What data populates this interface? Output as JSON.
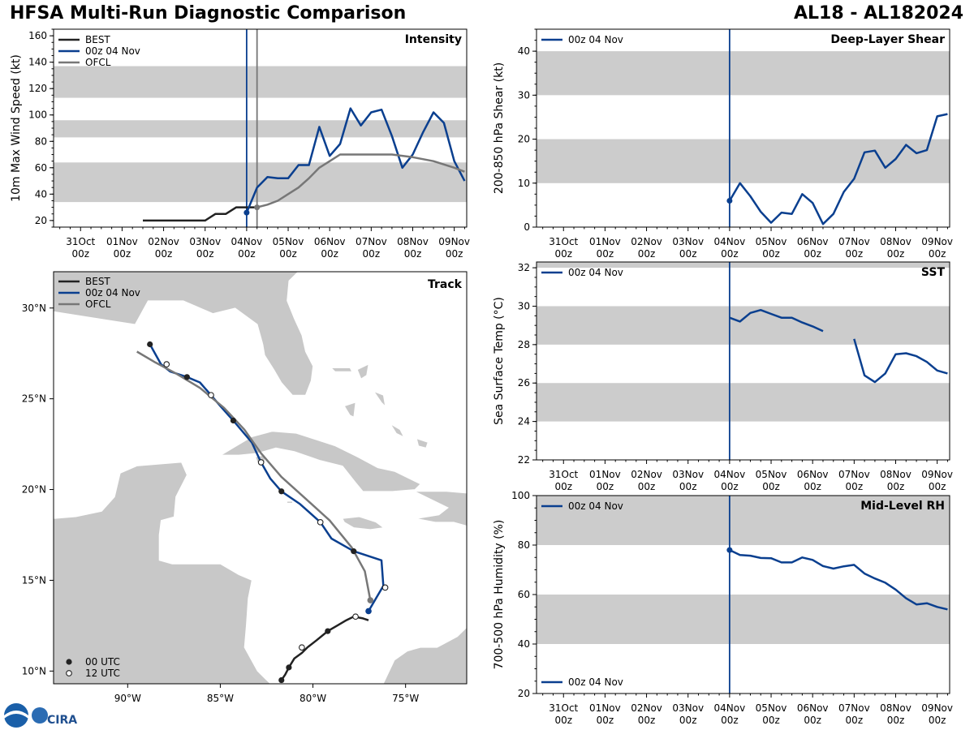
{
  "header": {
    "title_left": "HFSA Multi-Run Diagnostic Comparison",
    "title_right": "AL18 - AL182024"
  },
  "colors": {
    "best": "#222222",
    "run": "#0a3f8f",
    "ofcl": "#777777",
    "band": "#cccccc",
    "land": "#c8c8c8"
  },
  "time_ticks": [
    {
      "day": "31Oct",
      "hour": "00z"
    },
    {
      "day": "01Nov",
      "hour": "00z"
    },
    {
      "day": "02Nov",
      "hour": "00z"
    },
    {
      "day": "03Nov",
      "hour": "00z"
    },
    {
      "day": "04Nov",
      "hour": "00z"
    },
    {
      "day": "05Nov",
      "hour": "00z"
    },
    {
      "day": "06Nov",
      "hour": "00z"
    },
    {
      "day": "07Nov",
      "hour": "00z"
    },
    {
      "day": "08Nov",
      "hour": "00z"
    },
    {
      "day": "09Nov",
      "hour": "00z"
    }
  ],
  "legend": {
    "best": "BEST",
    "run": "00z 04 Nov",
    "ofcl": "OFCL",
    "utc00": "00 UTC",
    "utc12": "12 UTC"
  },
  "logo": {
    "text": "CIRA"
  },
  "chart_data": [
    {
      "id": "intensity",
      "type": "line",
      "title": "Intensity",
      "ylabel": "10m Max Wind Speed (kt)",
      "x_unit": "days since 31Oct 00z",
      "ylim": [
        15,
        165
      ],
      "yticks": [
        20,
        40,
        60,
        80,
        100,
        120,
        140,
        160
      ],
      "bands": [
        [
          34,
          64
        ],
        [
          83,
          96
        ],
        [
          113,
          137
        ]
      ],
      "init_lines": [
        4.0,
        4.25
      ],
      "series": [
        {
          "name": "BEST",
          "x": [
            1.5,
            1.75,
            2,
            2.25,
            2.5,
            2.75,
            3,
            3.25,
            3.5,
            3.75,
            4,
            4.25
          ],
          "y": [
            20,
            20,
            20,
            20,
            20,
            20,
            20,
            25,
            25,
            30,
            30,
            30
          ]
        },
        {
          "name": "00z 04 Nov",
          "x": [
            4,
            4.25,
            4.5,
            4.75,
            5,
            5.25,
            5.5,
            5.75,
            6,
            6.25,
            6.5,
            6.75,
            7,
            7.25,
            7.5,
            7.75,
            8,
            8.25,
            8.5,
            8.75,
            9,
            9.25
          ],
          "y": [
            26,
            45,
            53,
            52,
            52,
            62,
            62,
            91,
            69,
            78,
            105,
            92,
            102,
            104,
            84,
            60,
            70,
            87,
            102,
            94,
            65,
            50
          ]
        },
        {
          "name": "OFCL",
          "x": [
            4.25,
            4.5,
            4.75,
            5,
            5.25,
            5.5,
            5.75,
            6,
            6.25,
            6.5,
            7,
            7.5,
            8,
            8.5,
            9,
            9.25
          ],
          "y": [
            30,
            32,
            35,
            40,
            45,
            52,
            60,
            65,
            70,
            70,
            70,
            70,
            68,
            65,
            60,
            57
          ]
        }
      ],
      "markers": [
        {
          "series": "00z 04 Nov",
          "x": 4,
          "y": 26
        },
        {
          "series": "OFCL",
          "x": 4.25,
          "y": 30
        }
      ]
    },
    {
      "id": "shear",
      "type": "line",
      "title": "Deep-Layer Shear",
      "ylabel": "200-850 hPa Shear (kt)",
      "x_unit": "days since 31Oct 00z",
      "ylim": [
        0,
        45
      ],
      "yticks": [
        0,
        10,
        20,
        30,
        40
      ],
      "bands": [
        [
          10,
          20
        ],
        [
          30,
          40
        ]
      ],
      "init_lines": [
        4.0
      ],
      "series": [
        {
          "name": "00z 04 Nov",
          "x": [
            4,
            4.25,
            4.5,
            4.75,
            5,
            5.25,
            5.5,
            5.75,
            6,
            6.25,
            6.5,
            6.75,
            7,
            7.25,
            7.5,
            7.75,
            8,
            8.25,
            8.5,
            8.75,
            9,
            9.25
          ],
          "y": [
            6,
            10,
            7,
            3.5,
            1,
            3.3,
            3,
            7.5,
            5.5,
            0.7,
            3,
            8,
            11,
            17,
            17.4,
            13.5,
            15.5,
            18.7,
            16.8,
            17.5,
            25.2,
            25.7
          ]
        }
      ],
      "markers": [
        {
          "series": "00z 04 Nov",
          "x": 4,
          "y": 6
        }
      ]
    },
    {
      "id": "sst",
      "type": "line",
      "title": "SST",
      "ylabel": "Sea Surface Temp (°C)",
      "x_unit": "days since 31Oct 00z",
      "ylim": [
        22,
        32.3
      ],
      "yticks": [
        22,
        24,
        26,
        28,
        30,
        32
      ],
      "bands": [
        [
          24,
          26
        ],
        [
          28,
          30
        ],
        [
          32,
          32.3
        ]
      ],
      "init_lines": [
        4.0
      ],
      "series": [
        {
          "name": "00z 04 Nov",
          "segments": [
            {
              "x": [
                4,
                4.25,
                4.5,
                4.75,
                5,
                5.25,
                5.5,
                5.75,
                6,
                6.25
              ],
              "y": [
                29.4,
                29.2,
                29.65,
                29.8,
                29.6,
                29.4,
                29.4,
                29.15,
                28.95,
                28.7
              ]
            },
            {
              "x": [
                7,
                7.25,
                7.5,
                7.75,
                8,
                8.25,
                8.5,
                8.75,
                9,
                9.25
              ],
              "y": [
                28.3,
                26.4,
                26.05,
                26.5,
                27.5,
                27.55,
                27.4,
                27.1,
                26.65,
                26.5
              ]
            }
          ]
        }
      ],
      "markers": []
    },
    {
      "id": "rh",
      "type": "line",
      "title": "Mid-Level RH",
      "ylabel": "700-500 hPa Humidity (%)",
      "x_unit": "days since 31Oct 00z",
      "ylim": [
        20,
        100
      ],
      "yticks": [
        20,
        40,
        60,
        80,
        100
      ],
      "bands": [
        [
          40,
          60
        ],
        [
          80,
          100
        ]
      ],
      "init_lines": [
        4.0
      ],
      "series": [
        {
          "name": "00z 04 Nov",
          "x": [
            4,
            4.25,
            4.5,
            4.75,
            5,
            5.25,
            5.5,
            5.75,
            6,
            6.25,
            6.5,
            6.75,
            7,
            7.25,
            7.5,
            7.75,
            8,
            8.25,
            8.5,
            8.75,
            9,
            9.25
          ],
          "y": [
            78,
            76,
            75.7,
            74.8,
            74.7,
            73,
            73,
            75,
            74,
            71.5,
            70.5,
            71.4,
            72,
            68.5,
            66.5,
            64.8,
            62,
            58.5,
            56,
            56.5,
            55,
            54
          ]
        }
      ],
      "markers": [
        {
          "series": "00z 04 Nov",
          "x": 4,
          "y": 78
        }
      ]
    },
    {
      "id": "track",
      "type": "scatter",
      "title": "Track",
      "xticks": [
        {
          "v": -90,
          "label": "90°W"
        },
        {
          "v": -85,
          "label": "85°W"
        },
        {
          "v": -80,
          "label": "80°W"
        },
        {
          "v": -75,
          "label": "75°W"
        }
      ],
      "yticks": [
        {
          "v": 10,
          "label": "10°N"
        },
        {
          "v": 15,
          "label": "15°N"
        },
        {
          "v": 20,
          "label": "20°N"
        },
        {
          "v": 25,
          "label": "25°N"
        },
        {
          "v": 30,
          "label": "30°N"
        }
      ],
      "xlim": [
        -94,
        -71.7
      ],
      "ylim": [
        9.3,
        32.0
      ],
      "series": [
        {
          "name": "BEST",
          "lon": [
            -81.7,
            -81.5,
            -81.3,
            -81,
            -80.6,
            -80.3,
            -79.8,
            -79.2,
            -78.7,
            -78.2,
            -77.8,
            -77.3,
            -77.0
          ],
          "lat": [
            9.5,
            9.8,
            10.2,
            10.7,
            11.0,
            11.3,
            11.7,
            12.2,
            12.5,
            12.8,
            13.0,
            12.9,
            12.8
          ]
        },
        {
          "name": "00z 04 Nov",
          "lon": [
            -77.0,
            -76.6,
            -76.2,
            -76.3,
            -77.8,
            -79.0,
            -79.6,
            -80.7,
            -81.7,
            -82.3,
            -82.8,
            -83.3,
            -84.3,
            -85.0,
            -85.5,
            -86.1,
            -86.8,
            -87.7,
            -88.2,
            -88.8
          ],
          "lat": [
            13.3,
            14.0,
            14.7,
            16.1,
            16.6,
            17.3,
            18.2,
            19.2,
            19.9,
            20.6,
            21.5,
            22.6,
            23.8,
            24.6,
            25.2,
            25.9,
            26.2,
            26.5,
            26.9,
            28.0
          ]
        },
        {
          "name": "OFCL",
          "lon": [
            -76.9,
            -77.2,
            -77.9,
            -79.1,
            -80.4,
            -81.7,
            -82.8,
            -83.7,
            -84.8,
            -86.1,
            -87.4,
            -88.5,
            -89.5
          ],
          "lat": [
            13.9,
            15.5,
            16.8,
            18.3,
            19.5,
            20.7,
            22.0,
            23.3,
            24.5,
            25.6,
            26.4,
            27.0,
            27.6
          ]
        }
      ],
      "points00": [
        {
          "lon": -81.7,
          "lat": 9.5
        },
        {
          "lon": -81.3,
          "lat": 10.2
        },
        {
          "lon": -79.2,
          "lat": 12.2
        },
        {
          "lon": -77.8,
          "lat": 16.6
        },
        {
          "lon": -81.7,
          "lat": 19.9
        },
        {
          "lon": -84.3,
          "lat": 23.8
        },
        {
          "lon": -86.8,
          "lat": 26.2
        },
        {
          "lon": -88.8,
          "lat": 28.0
        },
        {
          "lon": -77.0,
          "lat": 13.3
        }
      ],
      "points12": [
        {
          "lon": -80.6,
          "lat": 11.3
        },
        {
          "lon": -77.7,
          "lat": 13.0
        },
        {
          "lon": -76.1,
          "lat": 14.6
        },
        {
          "lon": -79.6,
          "lat": 18.2
        },
        {
          "lon": -82.8,
          "lat": 21.5
        },
        {
          "lon": -85.5,
          "lat": 25.2
        },
        {
          "lon": -87.9,
          "lat": 26.9
        }
      ],
      "ofcl_init": {
        "lon": -76.9,
        "lat": 13.9
      }
    }
  ]
}
